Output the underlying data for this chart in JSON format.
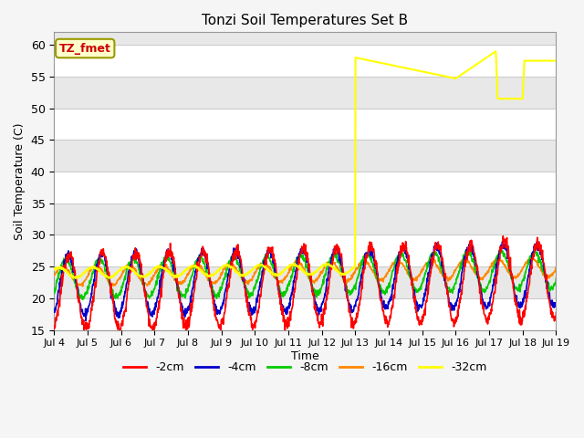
{
  "title": "Tonzi Soil Temperatures Set B",
  "ylabel": "Soil Temperature (C)",
  "xlabel": "Time",
  "ylim": [
    15,
    62
  ],
  "xlim": [
    0,
    15
  ],
  "yticks": [
    15,
    20,
    25,
    30,
    35,
    40,
    45,
    50,
    55,
    60
  ],
  "xtick_labels": [
    "Jul 4",
    "Jul 5",
    "Jul 6",
    "Jul 7",
    "Jul 8",
    "Jul 9",
    "Jul 10",
    "Jul 11",
    "Jul 12",
    "Jul 13",
    "Jul 14",
    "Jul 15",
    "Jul 16",
    "Jul 17",
    "Jul 18",
    "Jul 19"
  ],
  "colors": {
    "-2cm": "#ff0000",
    "-4cm": "#0000cc",
    "-8cm": "#00cc00",
    "-16cm": "#ff8800",
    "-32cm": "#ffff00"
  },
  "annotation_label": "TZ_fmet",
  "bg_color": "#e8e8e8",
  "bg_band_color": "#ffffff",
  "legend_labels": [
    "-2cm",
    "-4cm",
    "-8cm",
    "-16cm",
    "-32cm"
  ],
  "n_days": 15,
  "points_per_day": 96,
  "yellow_anomaly": {
    "points": [
      [
        9.0,
        58.0
      ],
      [
        12.0,
        54.7
      ],
      [
        13.2,
        59.0
      ],
      [
        13.25,
        51.5
      ],
      [
        14.0,
        51.5
      ],
      [
        14.05,
        57.5
      ],
      [
        14.8,
        57.5
      ]
    ]
  }
}
